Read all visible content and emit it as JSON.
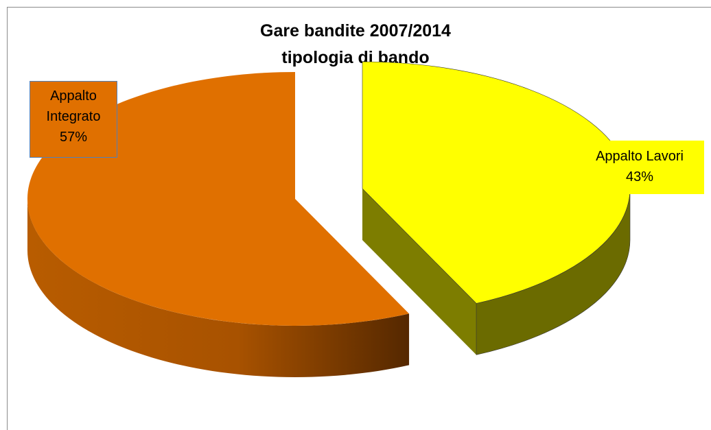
{
  "chart_data": {
    "type": "pie3d",
    "title": [
      "Gare bandite 2007/2014",
      "tipologia di bando"
    ],
    "categories": [
      "Appalto Integrato",
      "Appalto Lavori"
    ],
    "values": [
      57,
      43
    ],
    "value_labels": [
      "57%",
      "43%"
    ],
    "colors": [
      "#E07000",
      "#FFFF00"
    ]
  }
}
